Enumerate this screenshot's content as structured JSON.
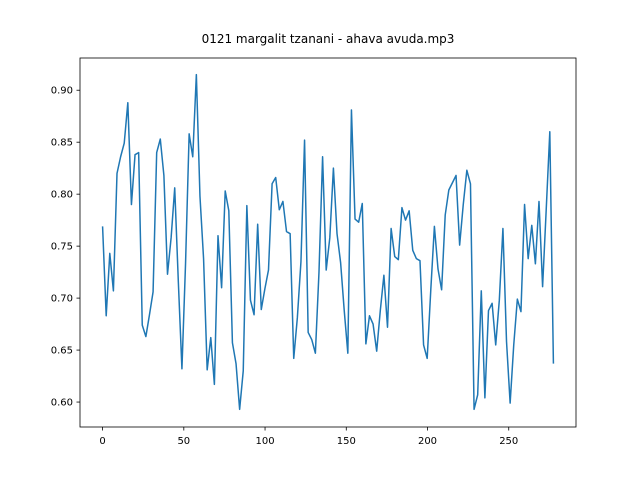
{
  "chart_data": {
    "type": "line",
    "title": "0121 margalit tzanani - ahava avuda.mp3",
    "x": [
      0,
      2.22,
      4.44,
      6.66,
      8.88,
      11.1,
      13.32,
      15.54,
      17.76,
      19.98,
      22.2,
      24.42,
      26.64,
      28.86,
      31.08,
      33.3,
      35.52,
      37.74,
      39.96,
      42.18,
      44.4,
      46.62,
      48.84,
      51.06,
      53.28,
      55.5,
      57.72,
      59.94,
      62.16,
      64.38,
      66.6,
      68.82,
      71.04,
      73.26,
      75.48,
      77.7,
      79.92,
      82.14,
      84.36,
      86.58,
      88.8,
      91.02,
      93.24,
      95.46,
      97.68,
      99.9,
      102.12,
      104.34,
      106.56,
      108.78,
      111,
      113.22,
      115.44,
      117.66,
      119.88,
      122.1,
      124.32,
      126.54,
      128.76,
      130.98,
      133.2,
      135.42,
      137.64,
      139.86,
      142.08,
      144.3,
      146.52,
      148.74,
      150.96,
      153.18,
      155.4,
      157.62,
      159.84,
      162.06,
      164.28,
      166.5,
      168.72,
      170.94,
      173.16,
      175.38,
      177.6,
      179.82,
      182.04,
      184.26,
      186.48,
      188.7,
      190.92,
      193.14,
      195.36,
      197.58,
      199.8,
      202.02,
      204.24,
      206.46,
      208.68,
      210.9,
      213.12,
      215.34,
      217.56,
      219.78,
      222,
      224.22,
      226.44,
      228.66,
      230.88,
      233.1,
      235.32,
      237.54,
      239.76,
      241.98,
      244.2,
      246.42,
      248.64,
      250.86,
      253.08,
      255.3,
      257.52,
      259.74,
      261.96,
      264.18,
      266.4,
      268.62,
      270.84,
      273.06,
      275.28,
      277.5
    ],
    "series": [
      {
        "color": "#1f77b4",
        "values": [
          0.769,
          0.683,
          0.743,
          0.707,
          0.82,
          0.836,
          0.849,
          0.888,
          0.79,
          0.838,
          0.84,
          0.674,
          0.663,
          0.684,
          0.706,
          0.84,
          0.853,
          0.818,
          0.723,
          0.758,
          0.806,
          0.716,
          0.632,
          0.733,
          0.858,
          0.836,
          0.915,
          0.798,
          0.738,
          0.631,
          0.662,
          0.617,
          0.76,
          0.71,
          0.803,
          0.784,
          0.657,
          0.637,
          0.593,
          0.63,
          0.789,
          0.698,
          0.684,
          0.771,
          0.689,
          0.709,
          0.727,
          0.81,
          0.816,
          0.785,
          0.793,
          0.764,
          0.762,
          0.642,
          0.681,
          0.735,
          0.852,
          0.667,
          0.66,
          0.647,
          0.725,
          0.836,
          0.727,
          0.758,
          0.825,
          0.762,
          0.734,
          0.688,
          0.647,
          0.881,
          0.776,
          0.773,
          0.791,
          0.656,
          0.683,
          0.675,
          0.649,
          0.688,
          0.722,
          0.672,
          0.767,
          0.74,
          0.737,
          0.787,
          0.775,
          0.784,
          0.746,
          0.738,
          0.736,
          0.655,
          0.642,
          0.708,
          0.769,
          0.728,
          0.708,
          0.78,
          0.804,
          0.811,
          0.818,
          0.751,
          0.79,
          0.823,
          0.81,
          0.593,
          0.607,
          0.707,
          0.604,
          0.688,
          0.695,
          0.655,
          0.698,
          0.767,
          0.658,
          0.599,
          0.655,
          0.699,
          0.687,
          0.79,
          0.738,
          0.77,
          0.733,
          0.793,
          0.711,
          0.785,
          0.86,
          0.637
        ]
      }
    ],
    "xlim": [
      -13.9,
      291.4
    ],
    "ylim": [
      0.576,
      0.931
    ],
    "xticks": [
      0,
      50,
      100,
      150,
      200,
      250
    ],
    "yticks": [
      {
        "value": 0.6,
        "label": "0.60"
      },
      {
        "value": 0.65,
        "label": "0.65"
      },
      {
        "value": 0.7,
        "label": "0.70"
      },
      {
        "value": 0.75,
        "label": "0.75"
      },
      {
        "value": 0.8,
        "label": "0.80"
      },
      {
        "value": 0.85,
        "label": "0.85"
      },
      {
        "value": 0.9,
        "label": "0.90"
      }
    ]
  }
}
